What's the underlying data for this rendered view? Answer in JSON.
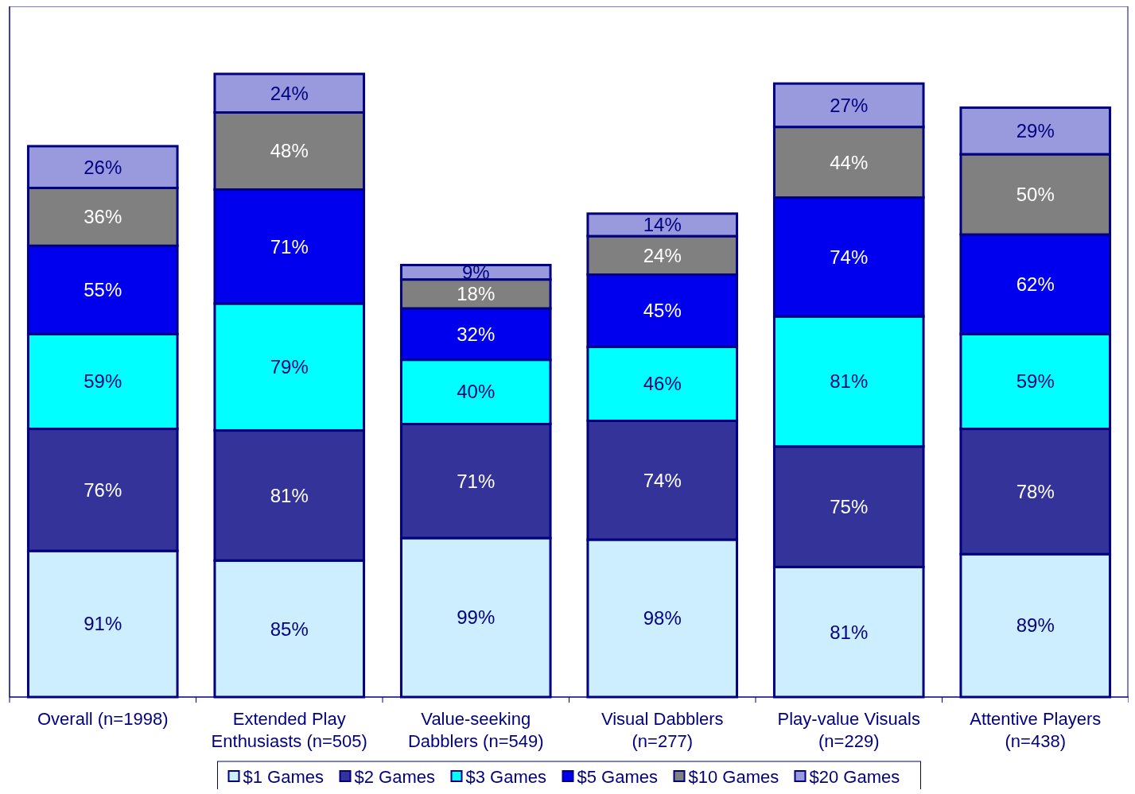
{
  "chart_data": {
    "type": "bar",
    "stacked": true,
    "legend": "bottom",
    "categories": [
      "Overall (n=1998)",
      "Extended Play Enthusiasts (n=505)",
      "Value-seeking Dabblers (n=549)",
      "Visual Dabblers (n=277)",
      "Play-value Visuals (n=229)",
      "Attentive Players (n=438)"
    ],
    "series": [
      {
        "name": "$1 Games",
        "color": "#cceeff",
        "values": [
          91,
          85,
          99,
          98,
          81,
          89
        ],
        "value_labels": [
          "91%",
          "85%",
          "99%",
          "98%",
          "81%",
          "89%"
        ]
      },
      {
        "name": "$2 Games",
        "color": "#333399",
        "values": [
          76,
          81,
          71,
          74,
          75,
          78
        ],
        "value_labels": [
          "76%",
          "81%",
          "71%",
          "74%",
          "75%",
          "78%"
        ]
      },
      {
        "name": "$3 Games",
        "color": "#00ffff",
        "values": [
          59,
          79,
          40,
          46,
          81,
          59
        ],
        "value_labels": [
          "59%",
          "79%",
          "40%",
          "46%",
          "81%",
          "59%"
        ]
      },
      {
        "name": "$5 Games",
        "color": "#0000ee",
        "values": [
          55,
          71,
          32,
          45,
          74,
          62
        ],
        "value_labels": [
          "55%",
          "71%",
          "32%",
          "45%",
          "74%",
          "62%"
        ]
      },
      {
        "name": "$10 Games",
        "color": "#808080",
        "values": [
          36,
          48,
          18,
          24,
          44,
          50
        ],
        "value_labels": [
          "36%",
          "48%",
          "18%",
          "24%",
          "44%",
          "50%"
        ]
      },
      {
        "name": "$20 Games",
        "color": "#9999dd",
        "values": [
          26,
          24,
          9,
          14,
          27,
          29
        ],
        "value_labels": [
          "26%",
          "24%",
          "9%",
          "14%",
          "27%",
          "29%"
        ]
      }
    ]
  }
}
